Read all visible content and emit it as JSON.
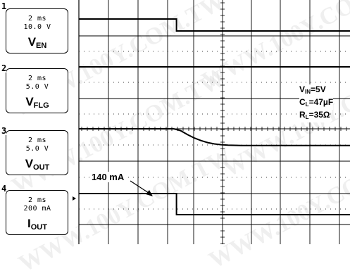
{
  "channels": [
    {
      "num": "1",
      "time": "2 ms",
      "scale": "10.0 V",
      "label_main": "V",
      "label_sub": "EN"
    },
    {
      "num": "2",
      "time": "2 ms",
      "scale": "5.0 V",
      "label_main": "V",
      "label_sub": "FLG"
    },
    {
      "num": "3",
      "time": "2 ms",
      "scale": "5.0 V",
      "label_main": "V",
      "label_sub": "OUT"
    },
    {
      "num": "4",
      "time": "2 ms",
      "scale": "200 mA",
      "label_main": "I",
      "label_sub": "OUT"
    }
  ],
  "conditions": {
    "vin_main": "V",
    "vin_sub": "IN",
    "vin_val": "=5V",
    "cl_main": "C",
    "cl_sub": "L",
    "cl_val": "=47µF",
    "rl_main": "R",
    "rl_sub": "L",
    "rl_val": "=35Ω"
  },
  "annotation": "140 mA",
  "watermark": "WWW.100Y.COM.TW",
  "colors": {
    "trace": "#000000",
    "grid": "#000000",
    "background": "#ffffff"
  },
  "chart_data": {
    "type": "line",
    "xlabel": "",
    "ylabel": "",
    "x_unit": "ms",
    "time_per_div": "2 ms",
    "x_divisions": 10,
    "xlim": [
      0,
      20
    ],
    "grid": true,
    "series": [
      {
        "name": "VEN",
        "points": [
          [
            0,
            1
          ],
          [
            7.2,
            1
          ],
          [
            7.2,
            0
          ],
          [
            20,
            0
          ]
        ]
      },
      {
        "name": "VFLG",
        "points": [
          [
            0,
            1
          ],
          [
            20,
            1
          ]
        ]
      },
      {
        "name": "VOUT",
        "points": [
          [
            0,
            1
          ],
          [
            7.0,
            1
          ],
          [
            7.5,
            0.93
          ],
          [
            8,
            0.78
          ],
          [
            8.5,
            0.65
          ],
          [
            9,
            0.55
          ],
          [
            9.5,
            0.47
          ],
          [
            10,
            0.42
          ],
          [
            10.5,
            0.39
          ],
          [
            11,
            0.37
          ],
          [
            12,
            0.36
          ],
          [
            14,
            0.36
          ],
          [
            20,
            0.36
          ]
        ]
      },
      {
        "name": "IOUT",
        "points": [
          [
            0,
            140
          ],
          [
            7.2,
            140
          ],
          [
            7.2,
            0
          ],
          [
            20,
            0
          ]
        ]
      }
    ]
  }
}
